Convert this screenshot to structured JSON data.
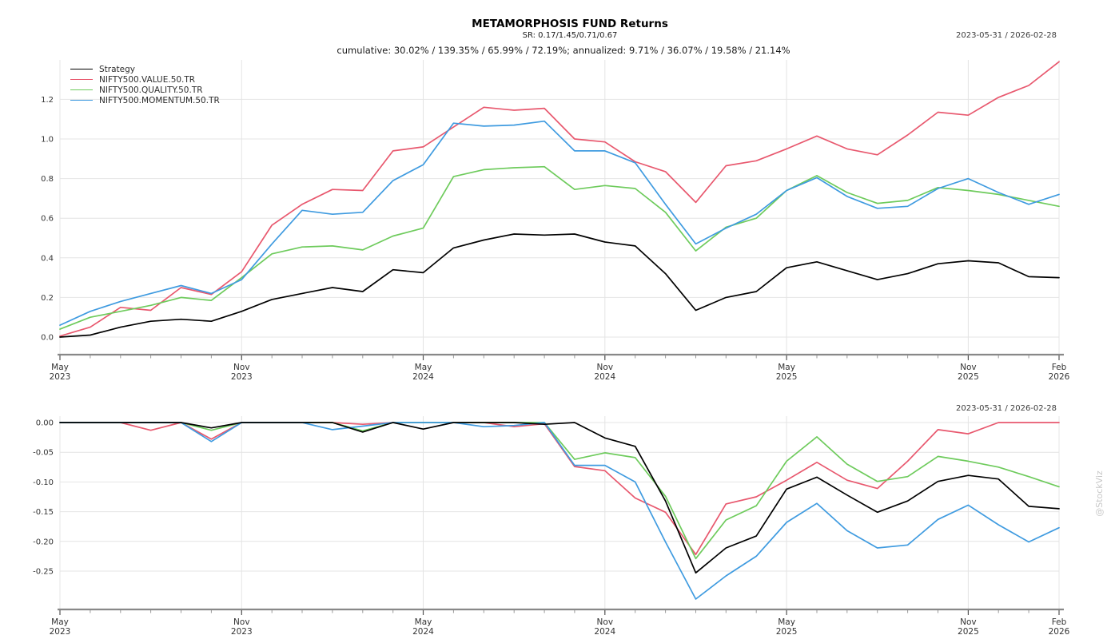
{
  "header": {
    "title": "METAMORPHOSIS FUND Returns",
    "subtitle": "SR: 0.17/1.45/0.71/0.67",
    "stats_line": "cumulative: 30.02% / 139.35% / 65.99% / 72.19%; annualized: 9.71% / 36.07% / 19.58% / 21.14%",
    "date_range": "2023-05-31 / 2026-02-28"
  },
  "watermark": "@StockViz",
  "colors": {
    "strategy": "#000000",
    "value": "#e8586e",
    "quality": "#6ecb5c",
    "momentum": "#3f9be0",
    "gridline": "#e4e4e4",
    "axis_bar": "#888888",
    "major_tick": "#555555",
    "minor_tick": "#999999",
    "tick_label": "#333333"
  },
  "legend": {
    "items": [
      {
        "label": "Strategy",
        "color": "#000000"
      },
      {
        "label": "NIFTY500.VALUE.50.TR",
        "color": "#e8586e"
      },
      {
        "label": "NIFTY500.QUALITY.50.TR",
        "color": "#6ecb5c"
      },
      {
        "label": "NIFTY500.MOMENTUM.50.TR",
        "color": "#3f9be0"
      }
    ]
  },
  "chart_data": [
    {
      "type": "line",
      "panel": "cumulative-returns",
      "x": [
        "2023-05",
        "2023-06",
        "2023-07",
        "2023-08",
        "2023-09",
        "2023-10",
        "2023-11",
        "2023-12",
        "2024-01",
        "2024-02",
        "2024-03",
        "2024-04",
        "2024-05",
        "2024-06",
        "2024-07",
        "2024-08",
        "2024-09",
        "2024-10",
        "2024-11",
        "2024-12",
        "2025-01",
        "2025-02",
        "2025-03",
        "2025-04",
        "2025-05",
        "2025-06",
        "2025-07",
        "2025-08",
        "2025-09",
        "2025-10",
        "2025-11",
        "2025-12",
        "2026-01",
        "2026-02"
      ],
      "x_major_ticks": [
        {
          "index": 0,
          "line1": "May",
          "line2": "2023"
        },
        {
          "index": 6,
          "line1": "Nov",
          "line2": "2023"
        },
        {
          "index": 12,
          "line1": "May",
          "line2": "2024"
        },
        {
          "index": 18,
          "line1": "Nov",
          "line2": "2024"
        },
        {
          "index": 24,
          "line1": "May",
          "line2": "2025"
        },
        {
          "index": 30,
          "line1": "Nov",
          "line2": "2025"
        },
        {
          "index": 33,
          "line1": "Feb",
          "line2": "2026"
        }
      ],
      "y_ticks": [
        {
          "value": 0.0,
          "label": "0.0"
        },
        {
          "value": 0.2,
          "label": "0.2"
        },
        {
          "value": 0.4,
          "label": "0.4"
        },
        {
          "value": 0.6,
          "label": "0.6"
        },
        {
          "value": 0.8,
          "label": "0.8"
        },
        {
          "value": 1.0,
          "label": "1.0"
        },
        {
          "value": 1.2,
          "label": "1.2"
        }
      ],
      "ylim": [
        -0.04,
        1.42
      ],
      "grid": true,
      "legend_position": "upper-left",
      "series": [
        {
          "name": "Strategy",
          "color": "#000000",
          "values": [
            0.0,
            0.01,
            0.05,
            0.08,
            0.09,
            0.08,
            0.13,
            0.19,
            0.22,
            0.25,
            0.23,
            0.34,
            0.325,
            0.45,
            0.49,
            0.52,
            0.515,
            0.52,
            0.48,
            0.46,
            0.32,
            0.135,
            0.2,
            0.23,
            0.35,
            0.38,
            0.335,
            0.29,
            0.32,
            0.37,
            0.385,
            0.375,
            0.305,
            0.3
          ]
        },
        {
          "name": "NIFTY500.VALUE.50.TR",
          "color": "#e8586e",
          "values": [
            0.005,
            0.05,
            0.15,
            0.135,
            0.25,
            0.215,
            0.33,
            0.565,
            0.67,
            0.745,
            0.74,
            0.94,
            0.96,
            1.06,
            1.16,
            1.145,
            1.155,
            1.0,
            0.985,
            0.885,
            0.835,
            0.68,
            0.865,
            0.89,
            0.95,
            1.015,
            0.95,
            0.92,
            1.02,
            1.135,
            1.12,
            1.21,
            1.27,
            1.39
          ]
        },
        {
          "name": "NIFTY500.QUALITY.50.TR",
          "color": "#6ecb5c",
          "values": [
            0.04,
            0.1,
            0.13,
            0.16,
            0.2,
            0.185,
            0.3,
            0.42,
            0.455,
            0.46,
            0.44,
            0.51,
            0.55,
            0.81,
            0.845,
            0.855,
            0.86,
            0.745,
            0.765,
            0.75,
            0.63,
            0.435,
            0.555,
            0.6,
            0.74,
            0.815,
            0.73,
            0.675,
            0.69,
            0.755,
            0.74,
            0.72,
            0.69,
            0.66
          ]
        },
        {
          "name": "NIFTY500.MOMENTUM.50.TR",
          "color": "#3f9be0",
          "values": [
            0.06,
            0.13,
            0.18,
            0.22,
            0.26,
            0.22,
            0.29,
            0.47,
            0.64,
            0.62,
            0.63,
            0.79,
            0.87,
            1.08,
            1.065,
            1.07,
            1.09,
            0.94,
            0.94,
            0.88,
            0.67,
            0.47,
            0.55,
            0.62,
            0.74,
            0.805,
            0.71,
            0.65,
            0.66,
            0.75,
            0.8,
            0.73,
            0.67,
            0.72
          ]
        }
      ]
    },
    {
      "type": "line",
      "panel": "drawdown",
      "x": [
        "2023-05",
        "2023-06",
        "2023-07",
        "2023-08",
        "2023-09",
        "2023-10",
        "2023-11",
        "2023-12",
        "2024-01",
        "2024-02",
        "2024-03",
        "2024-04",
        "2024-05",
        "2024-06",
        "2024-07",
        "2024-08",
        "2024-09",
        "2024-10",
        "2024-11",
        "2024-12",
        "2025-01",
        "2025-02",
        "2025-03",
        "2025-04",
        "2025-05",
        "2025-06",
        "2025-07",
        "2025-08",
        "2025-09",
        "2025-10",
        "2025-11",
        "2025-12",
        "2026-01",
        "2026-02"
      ],
      "x_major_ticks": [
        {
          "index": 0,
          "line1": "May",
          "line2": "2023"
        },
        {
          "index": 6,
          "line1": "Nov",
          "line2": "2023"
        },
        {
          "index": 12,
          "line1": "May",
          "line2": "2024"
        },
        {
          "index": 18,
          "line1": "Nov",
          "line2": "2024"
        },
        {
          "index": 24,
          "line1": "May",
          "line2": "2025"
        },
        {
          "index": 30,
          "line1": "Nov",
          "line2": "2025"
        },
        {
          "index": 33,
          "line1": "Feb",
          "line2": "2026"
        }
      ],
      "y_ticks": [
        {
          "value": 0.0,
          "label": "0.00"
        },
        {
          "value": -0.05,
          "label": "-0.05"
        },
        {
          "value": -0.1,
          "label": "-0.10"
        },
        {
          "value": -0.15,
          "label": "-0.15"
        },
        {
          "value": -0.2,
          "label": "-0.20"
        },
        {
          "value": -0.25,
          "label": "-0.25"
        }
      ],
      "ylim": [
        -0.313,
        0.011
      ],
      "grid": true,
      "legend_position": "none",
      "series": [
        {
          "name": "Strategy",
          "color": "#000000",
          "values": [
            0,
            0,
            0,
            0,
            0,
            -0.009,
            0,
            0,
            0,
            0,
            -0.016,
            0,
            -0.011,
            0,
            0,
            0,
            -0.003,
            0,
            -0.026,
            -0.04,
            -0.132,
            -0.253,
            -0.211,
            -0.191,
            -0.112,
            -0.092,
            -0.122,
            -0.151,
            -0.132,
            -0.099,
            -0.089,
            -0.095,
            -0.141,
            -0.145
          ]
        },
        {
          "name": "NIFTY500.VALUE.50.TR",
          "color": "#e8586e",
          "values": [
            0,
            0,
            0,
            -0.013,
            0,
            -0.028,
            0,
            0,
            0,
            0,
            -0.003,
            0,
            0,
            0,
            0,
            -0.007,
            -0.002,
            -0.074,
            -0.081,
            -0.127,
            -0.151,
            -0.222,
            -0.137,
            -0.125,
            -0.097,
            -0.067,
            -0.097,
            -0.111,
            -0.065,
            -0.012,
            -0.019,
            0,
            0,
            0
          ]
        },
        {
          "name": "NIFTY500.QUALITY.50.TR",
          "color": "#6ecb5c",
          "values": [
            0,
            0,
            0,
            0,
            0,
            -0.013,
            0,
            0,
            0,
            0,
            -0.014,
            0,
            0,
            0,
            0,
            0,
            0,
            -0.062,
            -0.051,
            -0.059,
            -0.124,
            -0.229,
            -0.164,
            -0.14,
            -0.065,
            -0.024,
            -0.07,
            -0.099,
            -0.091,
            -0.057,
            -0.065,
            -0.075,
            -0.091,
            -0.108
          ]
        },
        {
          "name": "NIFTY500.MOMENTUM.50.TR",
          "color": "#3f9be0",
          "values": [
            0,
            0,
            0,
            0,
            0,
            -0.032,
            0,
            0,
            0,
            -0.012,
            -0.006,
            0,
            0,
            0,
            -0.007,
            -0.005,
            0,
            -0.072,
            -0.072,
            -0.1,
            -0.201,
            -0.297,
            -0.258,
            -0.225,
            -0.168,
            -0.136,
            -0.182,
            -0.211,
            -0.206,
            -0.163,
            -0.139,
            -0.172,
            -0.201,
            -0.177
          ]
        }
      ]
    }
  ]
}
